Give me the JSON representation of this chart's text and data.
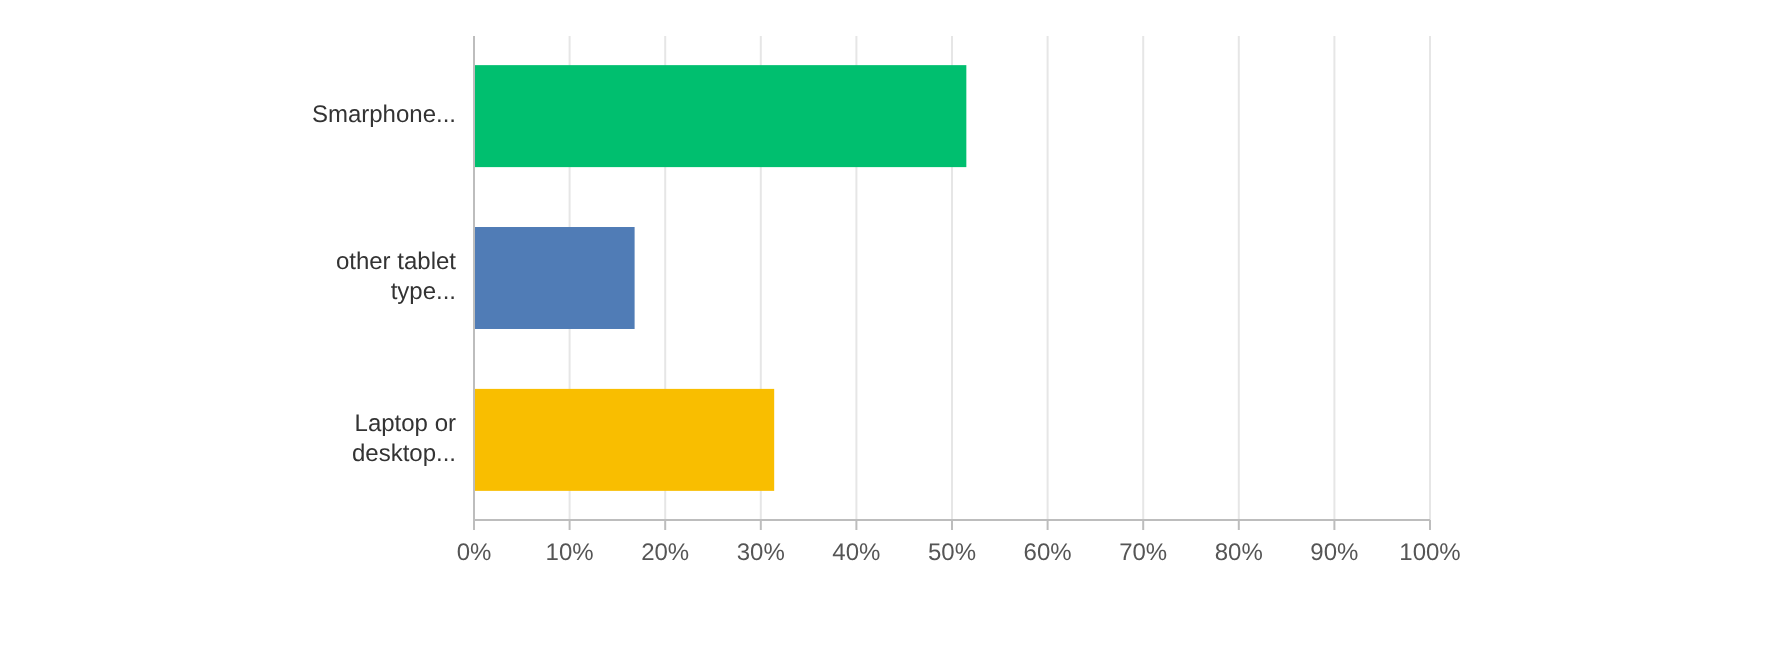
{
  "chart_data": {
    "type": "bar",
    "orientation": "horizontal",
    "categories": [
      "Smarphone...",
      "other tablet type...",
      "Laptop or desktop..."
    ],
    "values": [
      51.5,
      16.8,
      31.4
    ],
    "colors": [
      "#00bf6f",
      "#507cb6",
      "#f9be00"
    ],
    "xlim": [
      0,
      100
    ],
    "xticks": [
      {
        "value": 0,
        "label": "0%"
      },
      {
        "value": 10,
        "label": "10%"
      },
      {
        "value": 20,
        "label": "20%"
      },
      {
        "value": 30,
        "label": "30%"
      },
      {
        "value": 40,
        "label": "40%"
      },
      {
        "value": 50,
        "label": "50%"
      },
      {
        "value": 60,
        "label": "60%"
      },
      {
        "value": 70,
        "label": "70%"
      },
      {
        "value": 80,
        "label": "80%"
      },
      {
        "value": 90,
        "label": "90%"
      },
      {
        "value": 100,
        "label": "100%"
      }
    ],
    "grid": "x"
  }
}
